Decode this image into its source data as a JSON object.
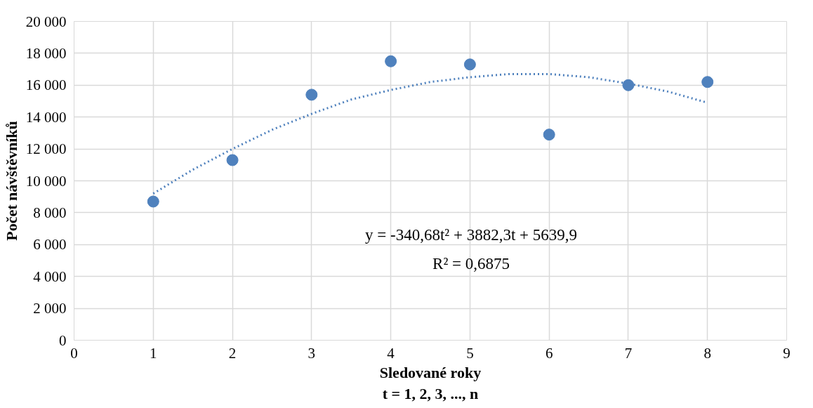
{
  "chart_data": {
    "type": "scatter",
    "xlabel": "Sledované roky\nt = 1, 2, 3, ..., n",
    "ylabel": "Počet návštěvníků",
    "x": [
      1,
      2,
      3,
      4,
      5,
      6,
      7,
      8
    ],
    "series": [
      {
        "color": "#4f81bd",
        "marker": "circle",
        "values": [
          8700,
          11300,
          15400,
          17500,
          17300,
          12900,
          16000,
          16200
        ]
      },
      {
        "type": "line",
        "color": "#4f81bd",
        "line_style": "dotted",
        "marker": "none",
        "x": [
          1,
          1.5,
          2,
          2.5,
          3,
          3.5,
          4,
          4.5,
          5,
          5.5,
          6,
          6.5,
          7,
          7.5,
          8
        ],
        "values": [
          9200,
          10700,
          12000,
          13200,
          14200,
          15100,
          15700,
          16200,
          16500,
          16700,
          16700,
          16500,
          16100,
          15600,
          14900
        ]
      }
    ],
    "xlim": [
      0,
      9
    ],
    "xticks": [
      0,
      1,
      2,
      3,
      4,
      5,
      6,
      7,
      8,
      9
    ],
    "ylim": [
      0,
      20000
    ],
    "yticks": [
      {
        "value": 0,
        "label": "0"
      },
      {
        "value": 2000,
        "label": "2 000"
      },
      {
        "value": 4000,
        "label": "4 000"
      },
      {
        "value": 6000,
        "label": "6 000"
      },
      {
        "value": 8000,
        "label": "8 000"
      },
      {
        "value": 10000,
        "label": "10 000"
      },
      {
        "value": 12000,
        "label": "12 000"
      },
      {
        "value": 14000,
        "label": "14 000"
      },
      {
        "value": 16000,
        "label": "16 000"
      },
      {
        "value": 18000,
        "label": "18 000"
      },
      {
        "value": 20000,
        "label": "20 000"
      }
    ],
    "annotations": [
      "y = -340,68t² + 3882,3t + 5639,9",
      "R² = 0,6875"
    ],
    "grid": true
  }
}
